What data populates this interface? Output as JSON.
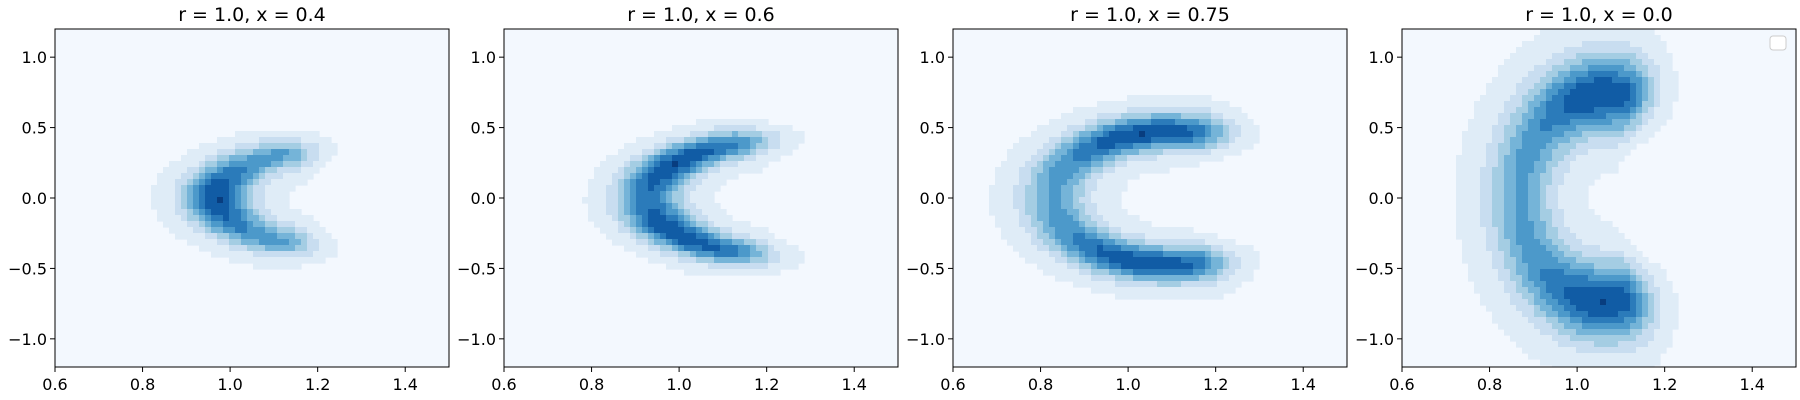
{
  "chart_data": [
    {
      "type": "contour",
      "title": "r = 1.0, x = 0.4",
      "xlim": [
        0.6,
        1.5
      ],
      "ylim": [
        -1.2,
        1.2
      ],
      "xticks": [
        0.6,
        0.8,
        1.0,
        1.2,
        1.4
      ],
      "yticks": [
        -1.0,
        -0.5,
        0.0,
        0.5,
        1.0
      ],
      "xtick_labels": [
        "0.6",
        "0.8",
        "1.0",
        "1.2",
        "1.4"
      ],
      "ytick_labels": [
        "−1.0",
        "−0.5",
        "0.0",
        "0.5",
        "1.0"
      ],
      "colormap": "Blues",
      "density_ridge": {
        "center": [
          1.22,
          0.0
        ],
        "radius": 0.25,
        "aspect_y": 1.35,
        "arc_deg": [
          115,
          245
        ],
        "peak_angles_deg": [
          180
        ],
        "thickness": 0.05,
        "spread_radius": 0.6
      },
      "legend": false
    },
    {
      "type": "contour",
      "title": "r = 1.0, x = 0.6",
      "xlim": [
        0.6,
        1.5
      ],
      "ylim": [
        -1.2,
        1.2
      ],
      "xticks": [
        0.6,
        0.8,
        1.0,
        1.2,
        1.4
      ],
      "yticks": [
        -1.0,
        -0.5,
        0.0,
        0.5,
        1.0
      ],
      "xtick_labels": [
        "0.6",
        "0.8",
        "1.0",
        "1.2",
        "1.4"
      ],
      "ytick_labels": [
        "−1.0",
        "−0.5",
        "0.0",
        "0.5",
        "1.0"
      ],
      "colormap": "Blues",
      "density_ridge": {
        "center": [
          1.25,
          0.0
        ],
        "radius": 0.32,
        "aspect_y": 1.3,
        "arc_deg": [
          115,
          245
        ],
        "peak_angles_deg": [
          145,
          215
        ],
        "thickness": 0.05,
        "spread_radius": 0.65
      },
      "legend": false
    },
    {
      "type": "contour",
      "title": "r = 1.0, x = 0.75",
      "xlim": [
        0.6,
        1.5
      ],
      "ylim": [
        -1.2,
        1.2
      ],
      "xticks": [
        0.6,
        0.8,
        1.0,
        1.2,
        1.4
      ],
      "yticks": [
        -1.0,
        -0.5,
        0.0,
        0.5,
        1.0
      ],
      "xtick_labels": [
        "0.6",
        "0.8",
        "1.0",
        "1.2",
        "1.4"
      ],
      "ytick_labels": [
        "−1.0",
        "−0.5",
        "0.0",
        "0.5",
        "1.0"
      ],
      "colormap": "Blues",
      "density_ridge": {
        "center": [
          1.1,
          0.0
        ],
        "radius": 0.27,
        "aspect_y": 1.75,
        "arc_deg": [
          80,
          280
        ],
        "peak_angles_deg": [
          105,
          255
        ],
        "thickness": 0.05,
        "spread_radius": 0.7
      },
      "legend": false
    },
    {
      "type": "contour",
      "title": "r = 1.0, x = 0.0",
      "xlim": [
        0.6,
        1.5
      ],
      "ylim": [
        -1.2,
        1.2
      ],
      "xticks": [
        0.6,
        0.8,
        1.0,
        1.2,
        1.4
      ],
      "yticks": [
        -1.0,
        -0.5,
        0.0,
        0.5,
        1.0
      ],
      "xtick_labels": [
        "0.6",
        "0.8",
        "1.0",
        "1.2",
        "1.4"
      ],
      "ytick_labels": [
        "−1.0",
        "−0.5",
        "0.0",
        "0.5",
        "1.0"
      ],
      "colormap": "Blues",
      "density_ridge": {
        "center": [
          1.07,
          0.0
        ],
        "radius": 0.2,
        "aspect_y": 3.7,
        "arc_deg": [
          80,
          280
        ],
        "peak_angles_deg": [
          95,
          265
        ],
        "thickness": 0.05,
        "spread_radius": 0.8
      },
      "legend": true,
      "legend_position": "upper right"
    }
  ]
}
